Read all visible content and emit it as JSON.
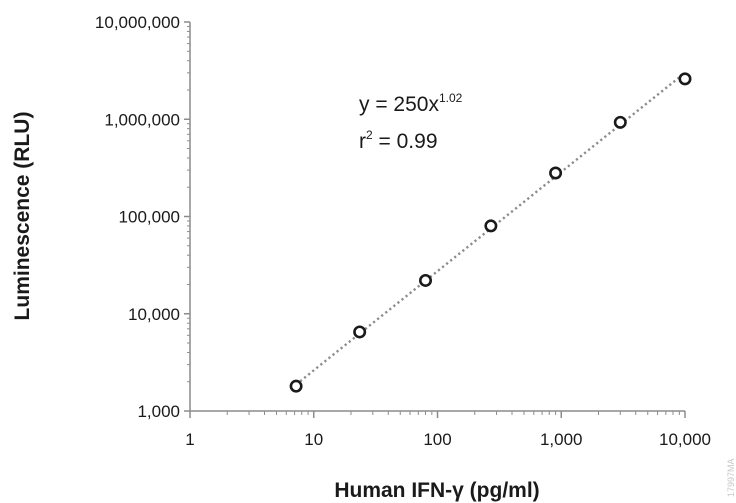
{
  "chart_data": {
    "type": "scatter",
    "xlabel": "Human IFN-γ (pg/ml)",
    "ylabel": "Luminescence (RLU)",
    "x_scale": "log",
    "y_scale": "log",
    "xlim": [
      1,
      10000
    ],
    "ylim": [
      1000,
      10000000
    ],
    "x_ticks": [
      1,
      10,
      100,
      1000,
      10000
    ],
    "x_tick_labels": [
      "1",
      "10",
      "100",
      "1,000",
      "10,000"
    ],
    "y_ticks": [
      1000,
      10000,
      100000,
      1000000,
      10000000
    ],
    "y_tick_labels": [
      "1,000",
      "10,000",
      "100,000",
      "1,000,000",
      "10,000,000"
    ],
    "grid": false,
    "series": [
      {
        "x": [
          7.2,
          23.5,
          80,
          270,
          900,
          3000,
          10000
        ],
        "y": [
          1800,
          6500,
          22000,
          80000,
          280000,
          930000,
          2600000
        ],
        "marker_color": "#1a1a1a"
      }
    ],
    "trendline": {
      "style": "dotted",
      "color": "#8c8c8c",
      "coefficient": 250,
      "exponent": 1.02,
      "x_from": 7.2,
      "x_to": 10000
    },
    "equation": {
      "line1_prefix": "y = 250x",
      "line1_exponent": "1.02",
      "line2_r": "r",
      "line2_sup": "2",
      "line2_value": " = 0.99"
    },
    "watermark": "17997MA"
  }
}
